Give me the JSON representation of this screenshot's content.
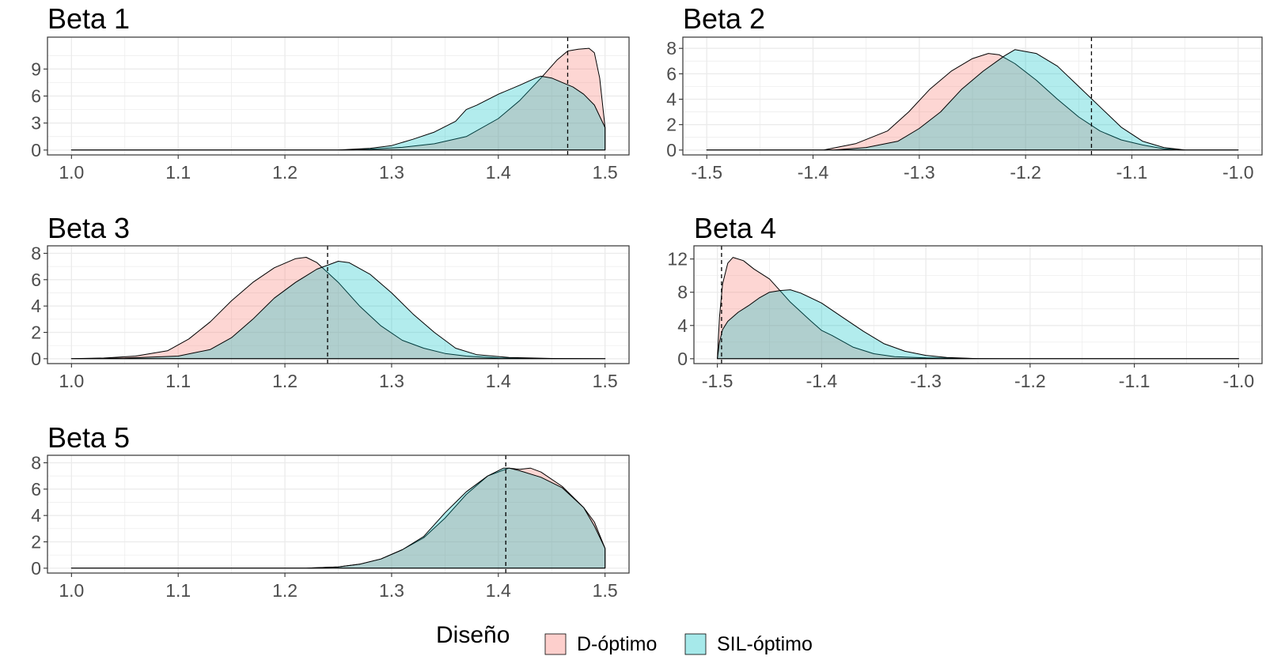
{
  "colors": {
    "d_optimo": "#F8766D",
    "sil_optimo": "#00BFC4",
    "outline": "#000000",
    "grid": "#ebebeb",
    "tick_text": "#4d4d4d"
  },
  "legend": {
    "title": "Diseño",
    "items": [
      {
        "label": "D-óptimo",
        "color": "#F8766D"
      },
      {
        "label": "SIL-óptimo",
        "color": "#00BFC4"
      }
    ]
  },
  "chart_data": [
    {
      "type": "area",
      "title": "Beta 1",
      "xlim": [
        1.0,
        1.5
      ],
      "ylim": [
        0,
        12
      ],
      "x_ticks": [
        1.0,
        1.1,
        1.2,
        1.3,
        1.4,
        1.5
      ],
      "x_tick_labels": [
        "1.0",
        "1.1",
        "1.2",
        "1.3",
        "1.4",
        "1.5"
      ],
      "y_ticks": [
        0,
        3,
        6,
        9
      ],
      "y_tick_labels": [
        "0",
        "3",
        "6",
        "9"
      ],
      "vline": 1.465,
      "series": [
        {
          "name": "D-óptimo",
          "x": [
            1.0,
            1.25,
            1.28,
            1.31,
            1.34,
            1.37,
            1.4,
            1.42,
            1.44,
            1.455,
            1.465,
            1.475,
            1.485,
            1.49,
            1.495,
            1.5
          ],
          "y": [
            0,
            0,
            0.1,
            0.3,
            0.7,
            1.5,
            3.5,
            5.5,
            8.0,
            10.0,
            11.0,
            11.2,
            11.3,
            10.8,
            8.0,
            2.5
          ]
        },
        {
          "name": "SIL-óptimo",
          "x": [
            1.0,
            1.25,
            1.28,
            1.3,
            1.32,
            1.34,
            1.36,
            1.37,
            1.38,
            1.4,
            1.42,
            1.435,
            1.44,
            1.45,
            1.46,
            1.47,
            1.48,
            1.49,
            1.5
          ],
          "y": [
            0,
            0,
            0.2,
            0.5,
            1.2,
            2.0,
            3.2,
            4.5,
            5.0,
            6.2,
            7.2,
            8.0,
            8.2,
            8.0,
            7.5,
            7.0,
            6.2,
            5.0,
            2.5
          ]
        }
      ]
    },
    {
      "type": "area",
      "title": "Beta 2",
      "xlim": [
        -1.5,
        -1.0
      ],
      "ylim": [
        0,
        8.5
      ],
      "x_ticks": [
        -1.5,
        -1.4,
        -1.3,
        -1.2,
        -1.1,
        -1.0
      ],
      "x_tick_labels": [
        "-1.5",
        "-1.4",
        "-1.3",
        "-1.2",
        "-1.1",
        "-1.0"
      ],
      "y_ticks": [
        0,
        2,
        4,
        6,
        8
      ],
      "y_tick_labels": [
        "0",
        "2",
        "4",
        "6",
        "8"
      ],
      "vline": -1.138,
      "series": [
        {
          "name": "D-óptimo",
          "x": [
            -1.5,
            -1.39,
            -1.36,
            -1.33,
            -1.31,
            -1.29,
            -1.27,
            -1.25,
            -1.235,
            -1.225,
            -1.21,
            -1.19,
            -1.17,
            -1.15,
            -1.13,
            -1.11,
            -1.09,
            -1.07,
            -1.05,
            -1.0
          ],
          "y": [
            0,
            0,
            0.5,
            1.5,
            3.0,
            4.8,
            6.2,
            7.2,
            7.6,
            7.5,
            6.8,
            5.5,
            4.0,
            2.6,
            1.5,
            0.8,
            0.4,
            0.1,
            0,
            0
          ]
        },
        {
          "name": "SIL-óptimo",
          "x": [
            -1.5,
            -1.38,
            -1.35,
            -1.32,
            -1.3,
            -1.28,
            -1.26,
            -1.24,
            -1.22,
            -1.21,
            -1.19,
            -1.17,
            -1.15,
            -1.13,
            -1.11,
            -1.09,
            -1.07,
            -1.05,
            -1.0
          ],
          "y": [
            0,
            0,
            0.2,
            0.7,
            1.7,
            3.0,
            4.8,
            6.2,
            7.4,
            7.9,
            7.6,
            6.6,
            5.0,
            3.4,
            1.8,
            0.7,
            0.2,
            0,
            0
          ]
        }
      ]
    },
    {
      "type": "area",
      "title": "Beta 3",
      "xlim": [
        1.0,
        1.5
      ],
      "ylim": [
        0,
        8.2
      ],
      "x_ticks": [
        1.0,
        1.1,
        1.2,
        1.3,
        1.4,
        1.5
      ],
      "x_tick_labels": [
        "1.0",
        "1.1",
        "1.2",
        "1.3",
        "1.4",
        "1.5"
      ],
      "y_ticks": [
        0,
        2,
        4,
        6,
        8
      ],
      "y_tick_labels": [
        "0",
        "2",
        "4",
        "6",
        "8"
      ],
      "vline": 1.24,
      "series": [
        {
          "name": "D-óptimo",
          "x": [
            1.0,
            1.03,
            1.06,
            1.09,
            1.11,
            1.13,
            1.15,
            1.17,
            1.19,
            1.21,
            1.22,
            1.23,
            1.25,
            1.27,
            1.29,
            1.31,
            1.33,
            1.35,
            1.37,
            1.4,
            1.45,
            1.5
          ],
          "y": [
            0,
            0.05,
            0.2,
            0.6,
            1.5,
            2.8,
            4.4,
            5.8,
            6.9,
            7.6,
            7.7,
            7.3,
            5.8,
            4.0,
            2.5,
            1.4,
            0.8,
            0.4,
            0.2,
            0.05,
            0,
            0
          ]
        },
        {
          "name": "SIL-óptimo",
          "x": [
            1.0,
            1.05,
            1.1,
            1.13,
            1.15,
            1.17,
            1.19,
            1.21,
            1.23,
            1.25,
            1.26,
            1.28,
            1.3,
            1.32,
            1.34,
            1.36,
            1.38,
            1.41,
            1.45,
            1.5
          ],
          "y": [
            0,
            0.05,
            0.2,
            0.7,
            1.6,
            3.0,
            4.6,
            5.8,
            6.8,
            7.4,
            7.3,
            6.4,
            5.0,
            3.4,
            2.0,
            0.8,
            0.3,
            0.1,
            0.02,
            0
          ]
        }
      ]
    },
    {
      "type": "area",
      "title": "Beta 4",
      "xlim": [
        -1.5,
        -1.0
      ],
      "ylim": [
        0,
        13
      ],
      "x_ticks": [
        -1.5,
        -1.4,
        -1.3,
        -1.2,
        -1.1,
        -1.0
      ],
      "x_tick_labels": [
        "-1.5",
        "-1.4",
        "-1.3",
        "-1.2",
        "-1.1",
        "-1.0"
      ],
      "y_ticks": [
        0,
        4,
        8,
        12
      ],
      "y_tick_labels": [
        "0",
        "4",
        "8",
        "12"
      ],
      "vline": -1.496,
      "series": [
        {
          "name": "D-óptimo",
          "x": [
            -1.5,
            -1.498,
            -1.495,
            -1.49,
            -1.485,
            -1.475,
            -1.465,
            -1.45,
            -1.44,
            -1.43,
            -1.41,
            -1.4,
            -1.39,
            -1.37,
            -1.35,
            -1.33,
            -1.3,
            -1.25,
            -1.22,
            -1.0
          ],
          "y": [
            0,
            5.0,
            9.0,
            11.5,
            12.2,
            11.8,
            10.8,
            9.6,
            8.2,
            6.8,
            4.5,
            3.4,
            2.8,
            1.4,
            0.6,
            0.25,
            0.1,
            0.02,
            0,
            0
          ]
        },
        {
          "name": "SIL-óptimo",
          "x": [
            -1.5,
            -1.498,
            -1.495,
            -1.49,
            -1.48,
            -1.47,
            -1.46,
            -1.45,
            -1.44,
            -1.43,
            -1.42,
            -1.4,
            -1.38,
            -1.36,
            -1.34,
            -1.32,
            -1.3,
            -1.28,
            -1.25,
            -1.0
          ],
          "y": [
            0,
            2.0,
            3.5,
            4.5,
            5.6,
            6.4,
            7.3,
            8.0,
            8.2,
            8.3,
            7.9,
            6.7,
            5.0,
            3.3,
            1.8,
            0.9,
            0.4,
            0.15,
            0,
            0
          ]
        }
      ]
    },
    {
      "type": "area",
      "title": "Beta 5",
      "xlim": [
        1.0,
        1.5
      ],
      "ylim": [
        0,
        8.2
      ],
      "x_ticks": [
        1.0,
        1.1,
        1.2,
        1.3,
        1.4,
        1.5
      ],
      "x_tick_labels": [
        "1.0",
        "1.1",
        "1.2",
        "1.3",
        "1.4",
        "1.5"
      ],
      "y_ticks": [
        0,
        2,
        4,
        6,
        8
      ],
      "y_tick_labels": [
        "0",
        "2",
        "4",
        "6",
        "8"
      ],
      "vline": 1.407,
      "series": [
        {
          "name": "D-óptimo",
          "x": [
            1.0,
            1.22,
            1.25,
            1.27,
            1.29,
            1.31,
            1.33,
            1.35,
            1.37,
            1.39,
            1.41,
            1.42,
            1.43,
            1.44,
            1.46,
            1.48,
            1.49,
            1.5
          ],
          "y": [
            0,
            0,
            0.1,
            0.3,
            0.7,
            1.4,
            2.3,
            3.8,
            5.6,
            7.0,
            7.6,
            7.5,
            7.6,
            7.3,
            6.2,
            4.6,
            3.5,
            1.5
          ]
        },
        {
          "name": "SIL-óptimo",
          "x": [
            1.0,
            1.22,
            1.25,
            1.27,
            1.29,
            1.31,
            1.33,
            1.35,
            1.37,
            1.39,
            1.405,
            1.41,
            1.42,
            1.44,
            1.46,
            1.48,
            1.49,
            1.5
          ],
          "y": [
            0,
            0,
            0.1,
            0.3,
            0.7,
            1.4,
            2.4,
            4.2,
            5.8,
            7.0,
            7.6,
            7.6,
            7.4,
            6.9,
            6.1,
            4.6,
            3.2,
            1.5
          ]
        }
      ]
    }
  ]
}
